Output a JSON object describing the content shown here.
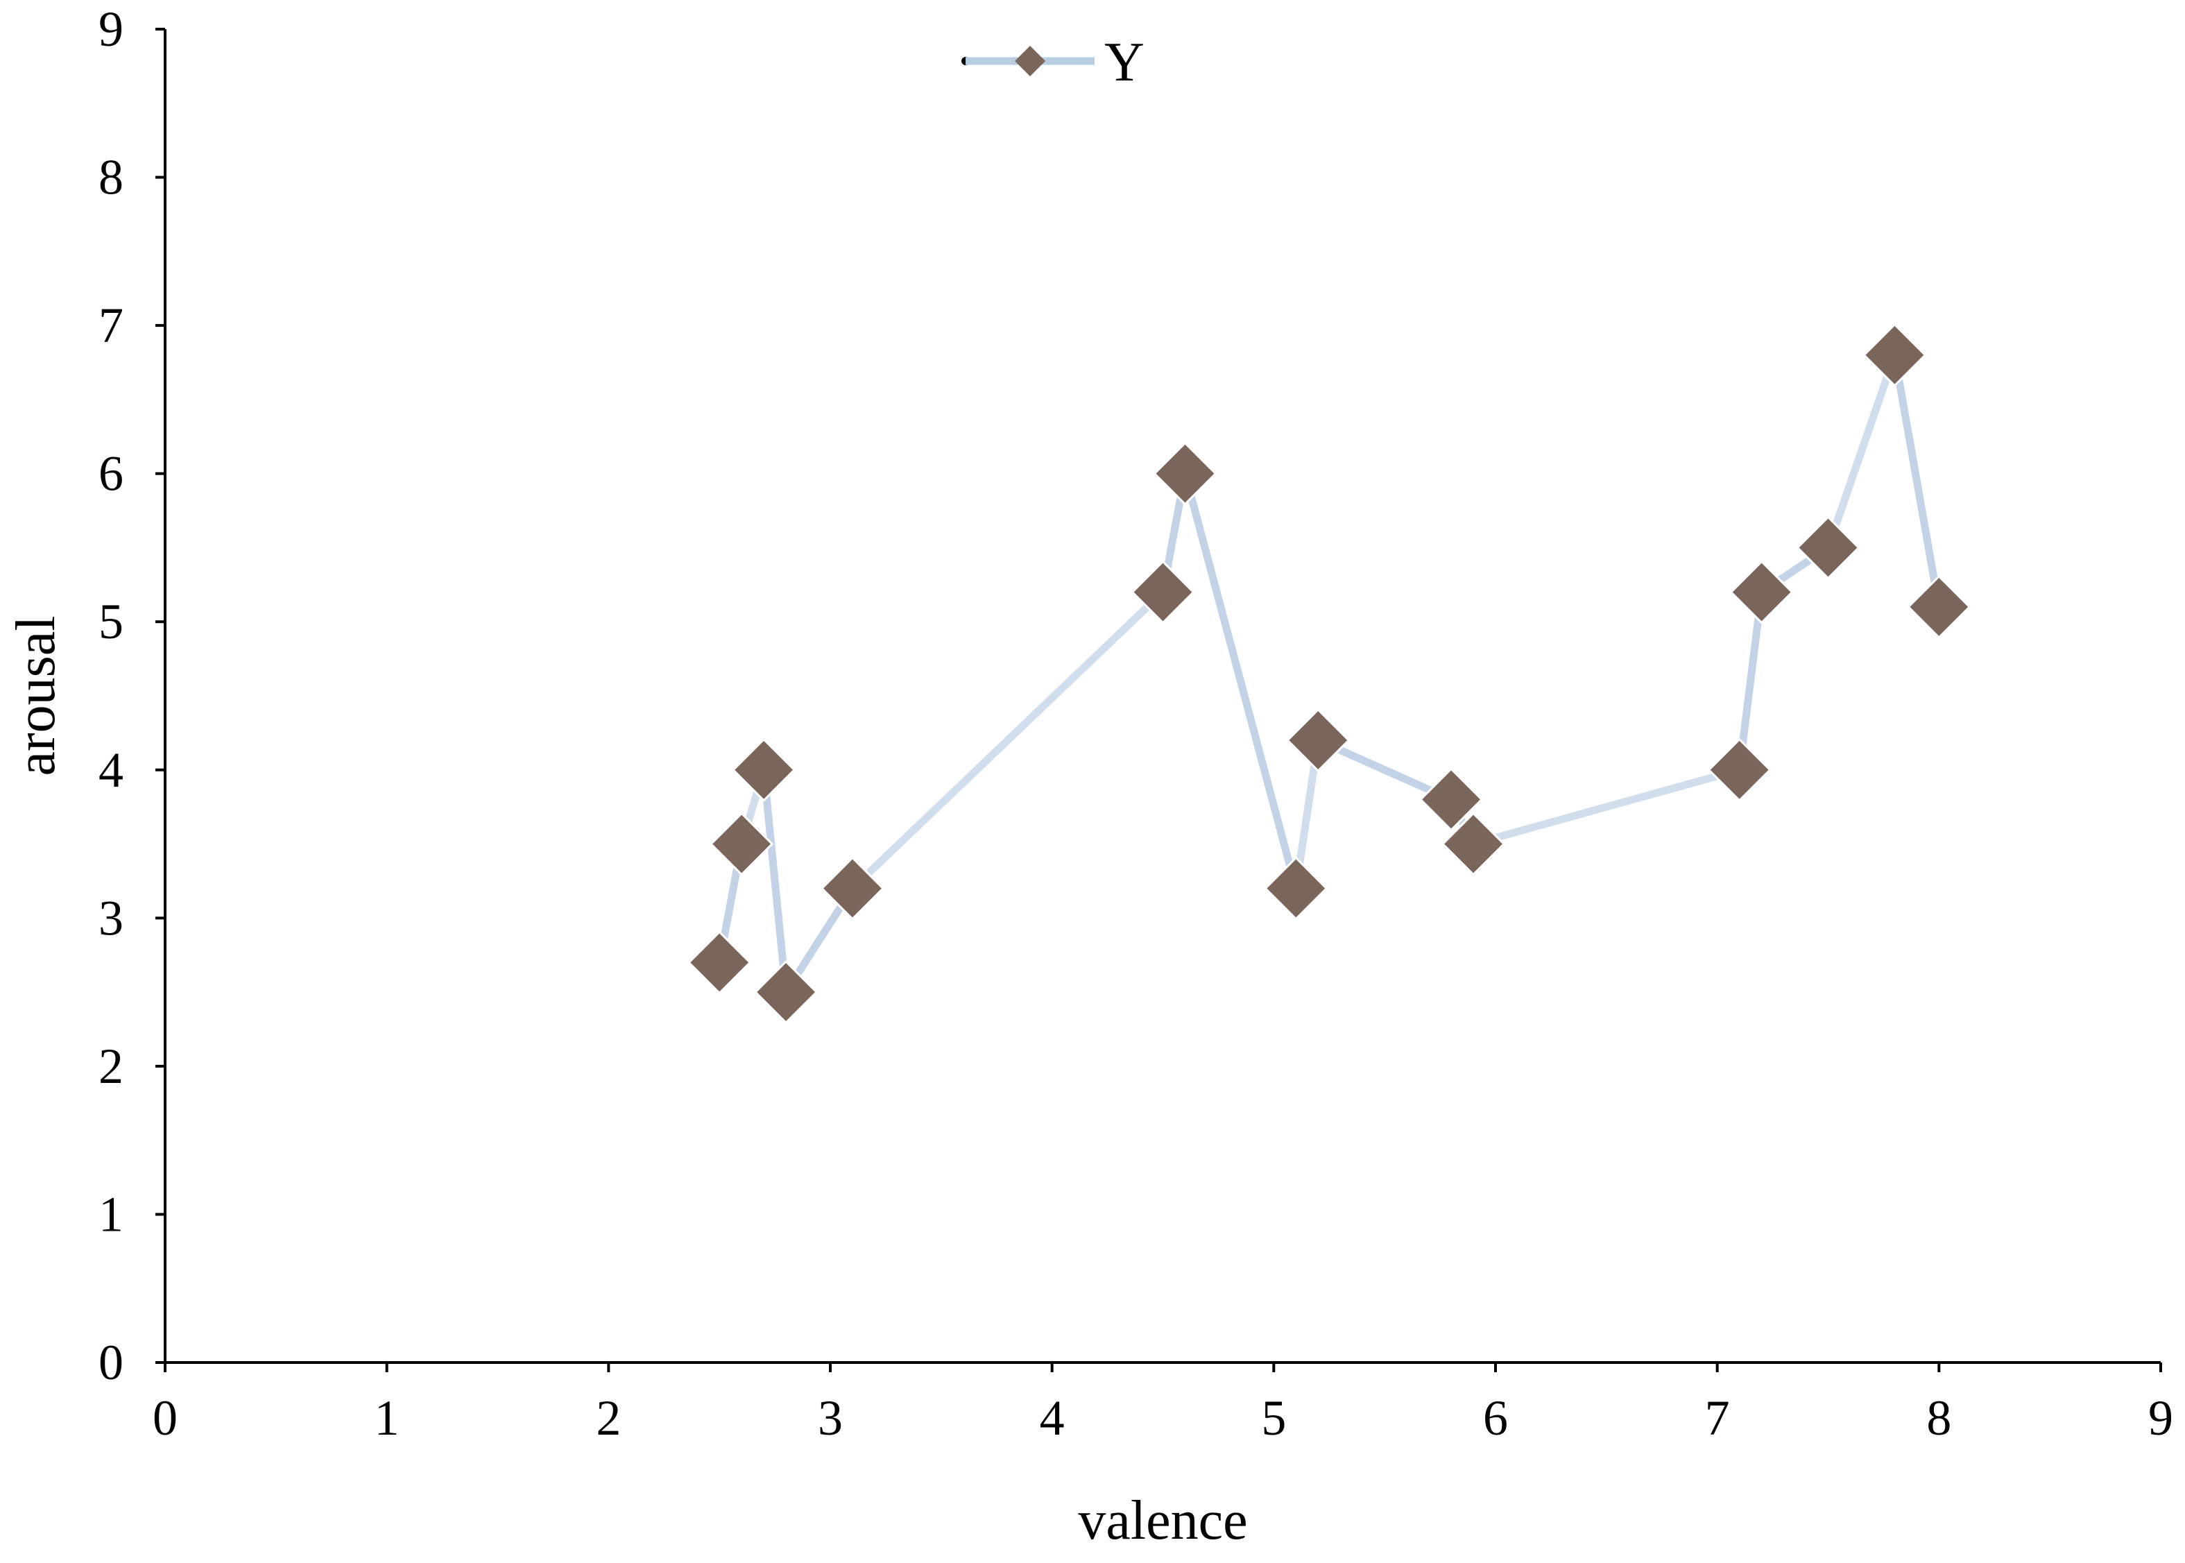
{
  "chart_data": {
    "type": "line",
    "xlabel": "valence",
    "ylabel": "arousal",
    "xlim": [
      0,
      9
    ],
    "ylim": [
      0,
      9
    ],
    "xticks": [
      "0",
      "1",
      "2",
      "3",
      "4",
      "5",
      "6",
      "7",
      "8",
      "9"
    ],
    "yticks": [
      "0",
      "1",
      "2",
      "3",
      "4",
      "5",
      "6",
      "7",
      "8",
      "9"
    ],
    "grid": false,
    "legend": {
      "position": "top-center",
      "entries": [
        "Y"
      ]
    },
    "series": [
      {
        "name": "Y",
        "marker": "diamond",
        "marker_color": "#7a655b",
        "line_color": "#b8cce4",
        "points": [
          {
            "x": 2.5,
            "y": 2.7
          },
          {
            "x": 2.6,
            "y": 3.5
          },
          {
            "x": 2.7,
            "y": 4.0
          },
          {
            "x": 2.8,
            "y": 2.5
          },
          {
            "x": 3.1,
            "y": 3.2
          },
          {
            "x": 4.5,
            "y": 5.2
          },
          {
            "x": 4.6,
            "y": 6.0
          },
          {
            "x": 5.1,
            "y": 3.2
          },
          {
            "x": 5.2,
            "y": 4.2
          },
          {
            "x": 5.8,
            "y": 3.8
          },
          {
            "x": 5.9,
            "y": 3.5
          },
          {
            "x": 7.1,
            "y": 4.0
          },
          {
            "x": 7.2,
            "y": 5.2
          },
          {
            "x": 7.5,
            "y": 5.5
          },
          {
            "x": 7.8,
            "y": 6.8
          },
          {
            "x": 8.0,
            "y": 5.1
          }
        ]
      }
    ]
  }
}
